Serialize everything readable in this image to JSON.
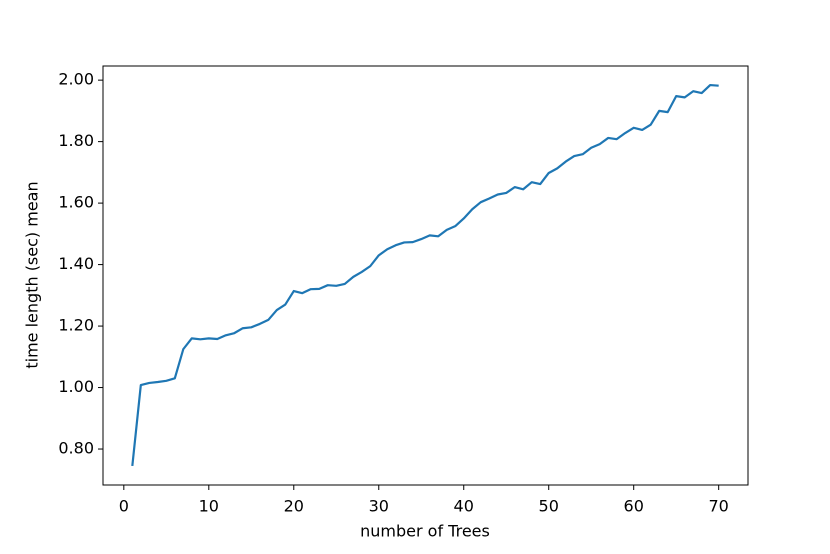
{
  "chart_data": {
    "type": "line",
    "x_label": "number of Trees",
    "y_label": "time length (sec) mean",
    "x": [
      1,
      2,
      3,
      4,
      5,
      6,
      7,
      8,
      9,
      10,
      11,
      12,
      13,
      14,
      15,
      16,
      17,
      18,
      19,
      20,
      21,
      22,
      23,
      24,
      25,
      26,
      27,
      28,
      29,
      30,
      31,
      32,
      33,
      34,
      35,
      36,
      37,
      38,
      39,
      40,
      41,
      42,
      43,
      44,
      45,
      46,
      47,
      48,
      49,
      50,
      51,
      52,
      53,
      54,
      55,
      56,
      57,
      58,
      59,
      60,
      61,
      62,
      63,
      64,
      65,
      66,
      67,
      68,
      69,
      70
    ],
    "series": [
      {
        "color": "#1f77b4",
        "values": [
          0.745,
          1.008,
          1.015,
          1.018,
          1.022,
          1.03,
          1.125,
          1.16,
          1.157,
          1.16,
          1.158,
          1.17,
          1.177,
          1.193,
          1.196,
          1.207,
          1.22,
          1.252,
          1.27,
          1.314,
          1.307,
          1.32,
          1.321,
          1.333,
          1.331,
          1.337,
          1.36,
          1.376,
          1.395,
          1.43,
          1.45,
          1.463,
          1.472,
          1.473,
          1.483,
          1.495,
          1.492,
          1.513,
          1.525,
          1.55,
          1.58,
          1.603,
          1.615,
          1.628,
          1.633,
          1.652,
          1.645,
          1.668,
          1.662,
          1.698,
          1.713,
          1.735,
          1.753,
          1.759,
          1.78,
          1.792,
          1.812,
          1.808,
          1.828,
          1.845,
          1.838,
          1.855,
          1.9,
          1.896,
          1.948,
          1.944,
          1.964,
          1.958,
          1.984,
          1.982
        ]
      }
    ],
    "xlim": [
      -2.45,
      73.45
    ],
    "ylim": [
      0.683,
      2.046
    ],
    "xticks": [
      0,
      10,
      20,
      30,
      40,
      50,
      60,
      70
    ],
    "yticks": [
      {
        "value": 0.8,
        "label": "0.80"
      },
      {
        "value": 1.0,
        "label": "1.00"
      },
      {
        "value": 1.2,
        "label": "1.20"
      },
      {
        "value": 1.4,
        "label": "1.40"
      },
      {
        "value": 1.6,
        "label": "1.60"
      },
      {
        "value": 1.8,
        "label": "1.80"
      },
      {
        "value": 2.0,
        "label": "2.00"
      }
    ]
  }
}
